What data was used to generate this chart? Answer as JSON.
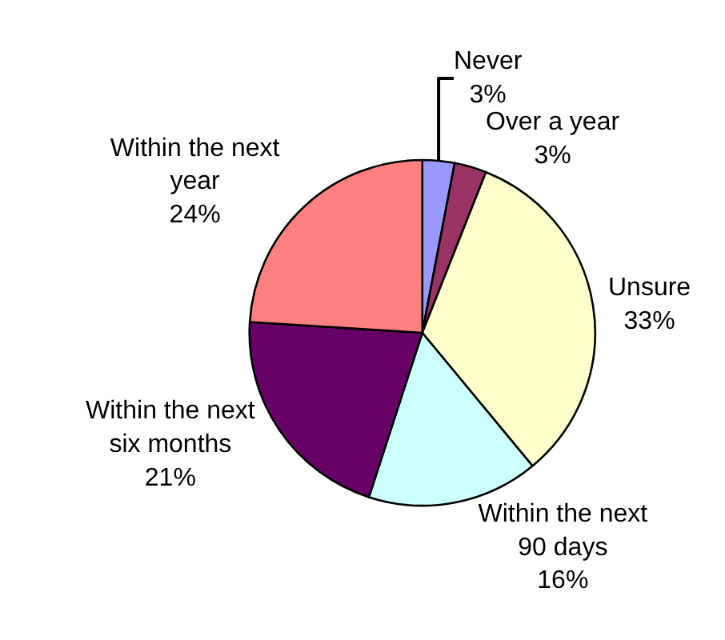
{
  "chart_data": {
    "type": "pie",
    "categories": [
      "Never",
      "Over a year",
      "Unsure",
      "Within the next 90 days",
      "Within the next six months",
      "Within the next year"
    ],
    "values": [
      3,
      3,
      33,
      16,
      21,
      24
    ],
    "value_labels": [
      "3%",
      "3%",
      "33%",
      "16%",
      "21%",
      "24%"
    ],
    "colors": [
      "#9999ff",
      "#993366",
      "#ffffcc",
      "#ccffff",
      "#660066",
      "#ff8080"
    ],
    "legend": false
  }
}
